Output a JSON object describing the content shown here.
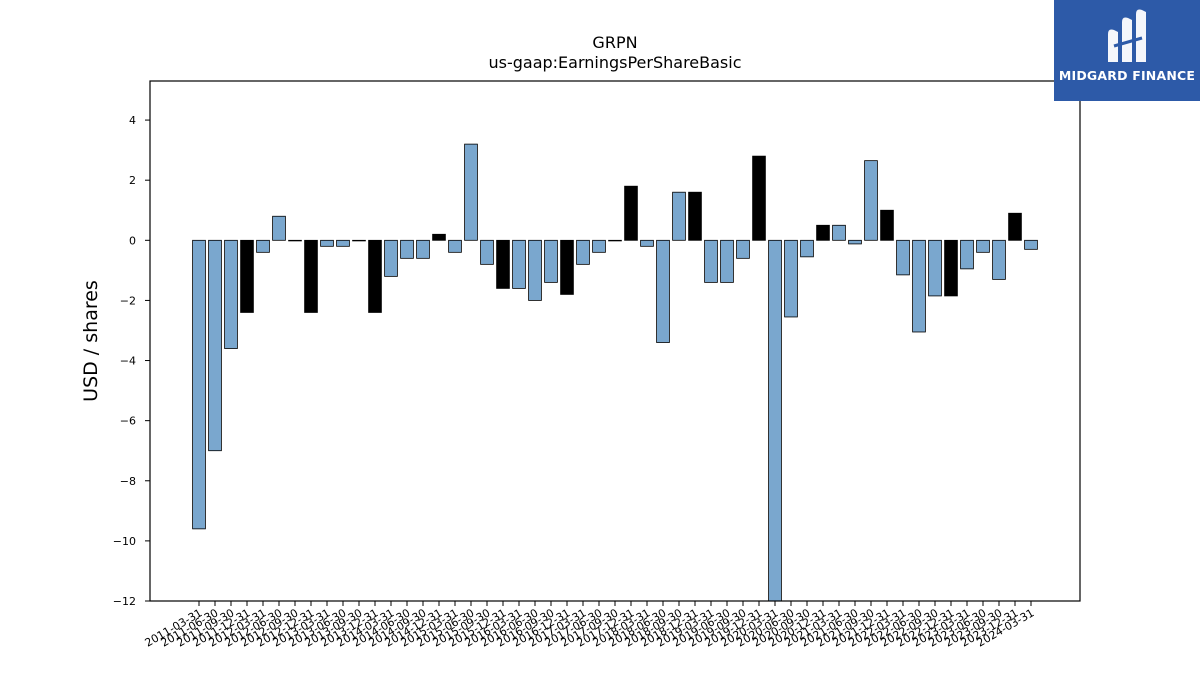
{
  "colors": {
    "positive_bar": "#7aa7ce",
    "negative_bar": "#000000",
    "logo_bg": "#2d5aa8"
  },
  "logo": {
    "text": "MIDGARD FINANCE",
    "icon": "midgard-logo-icon"
  },
  "chart_data": {
    "type": "bar",
    "title": "GRPN",
    "subtitle": "us-gaap:EarningsPerShareBasic",
    "ylabel": "USD / shares",
    "xlabel": "",
    "ylim": [
      -12,
      5.3
    ],
    "yticks": [
      4,
      2,
      0,
      -2,
      -4,
      -6,
      -8,
      -10,
      -12
    ],
    "ytick_labels": [
      "4",
      "2",
      "0",
      "−2",
      "−4",
      "−6",
      "−8",
      "−10",
      "−12"
    ],
    "categories": [
      "2011-03-31",
      "2011-06-30",
      "2011-09-30",
      "2011-12-31",
      "2012-03-31",
      "2012-06-30",
      "2012-09-30",
      "2012-12-31",
      "2013-03-31",
      "2013-06-30",
      "2013-09-30",
      "2013-12-31",
      "2014-03-31",
      "2014-06-30",
      "2014-09-30",
      "2014-12-31",
      "2015-03-31",
      "2015-06-30",
      "2015-09-30",
      "2015-12-31",
      "2016-03-31",
      "2016-06-30",
      "2016-09-30",
      "2016-12-31",
      "2017-03-31",
      "2017-06-30",
      "2017-09-30",
      "2017-12-31",
      "2018-03-31",
      "2018-06-30",
      "2018-09-30",
      "2018-12-31",
      "2019-03-31",
      "2019-06-30",
      "2019-09-30",
      "2019-12-31",
      "2020-03-31",
      "2020-06-30",
      "2020-09-30",
      "2020-12-31",
      "2021-03-31",
      "2021-06-30",
      "2021-09-30",
      "2021-12-31",
      "2022-03-31",
      "2022-06-30",
      "2022-09-30",
      "2022-12-31",
      "2023-03-31",
      "2023-06-30",
      "2023-09-30",
      "2023-12-31",
      "2024-03-31"
    ],
    "values": [
      -9.6,
      -7.0,
      -3.6,
      -2.4,
      -0.4,
      0.8,
      0.0,
      -2.4,
      -0.2,
      -0.2,
      0.0,
      -2.4,
      -1.2,
      -0.6,
      -0.6,
      0.2,
      -0.4,
      3.2,
      -0.8,
      -1.6,
      -1.6,
      -2.0,
      -1.4,
      -1.8,
      -0.8,
      -0.4,
      0.0,
      1.8,
      -0.2,
      -3.4,
      1.6,
      1.6,
      -1.4,
      -1.4,
      -0.6,
      2.8,
      -12.0,
      -2.55,
      -0.55,
      0.5,
      0.5,
      -0.12,
      2.65,
      1.0,
      -1.15,
      -3.05,
      -1.85,
      -1.85,
      -0.95,
      -0.4,
      -1.3,
      0.9,
      -0.3
    ],
    "highlight": [
      false,
      false,
      false,
      true,
      false,
      false,
      false,
      true,
      false,
      false,
      false,
      true,
      false,
      false,
      false,
      true,
      false,
      false,
      false,
      true,
      false,
      false,
      false,
      true,
      false,
      false,
      false,
      true,
      false,
      false,
      false,
      true,
      false,
      false,
      false,
      true,
      false,
      false,
      false,
      true,
      false,
      false,
      false,
      true,
      false,
      false,
      false,
      true,
      false,
      false,
      false,
      true,
      false
    ],
    "grid": false,
    "legend": "none"
  }
}
